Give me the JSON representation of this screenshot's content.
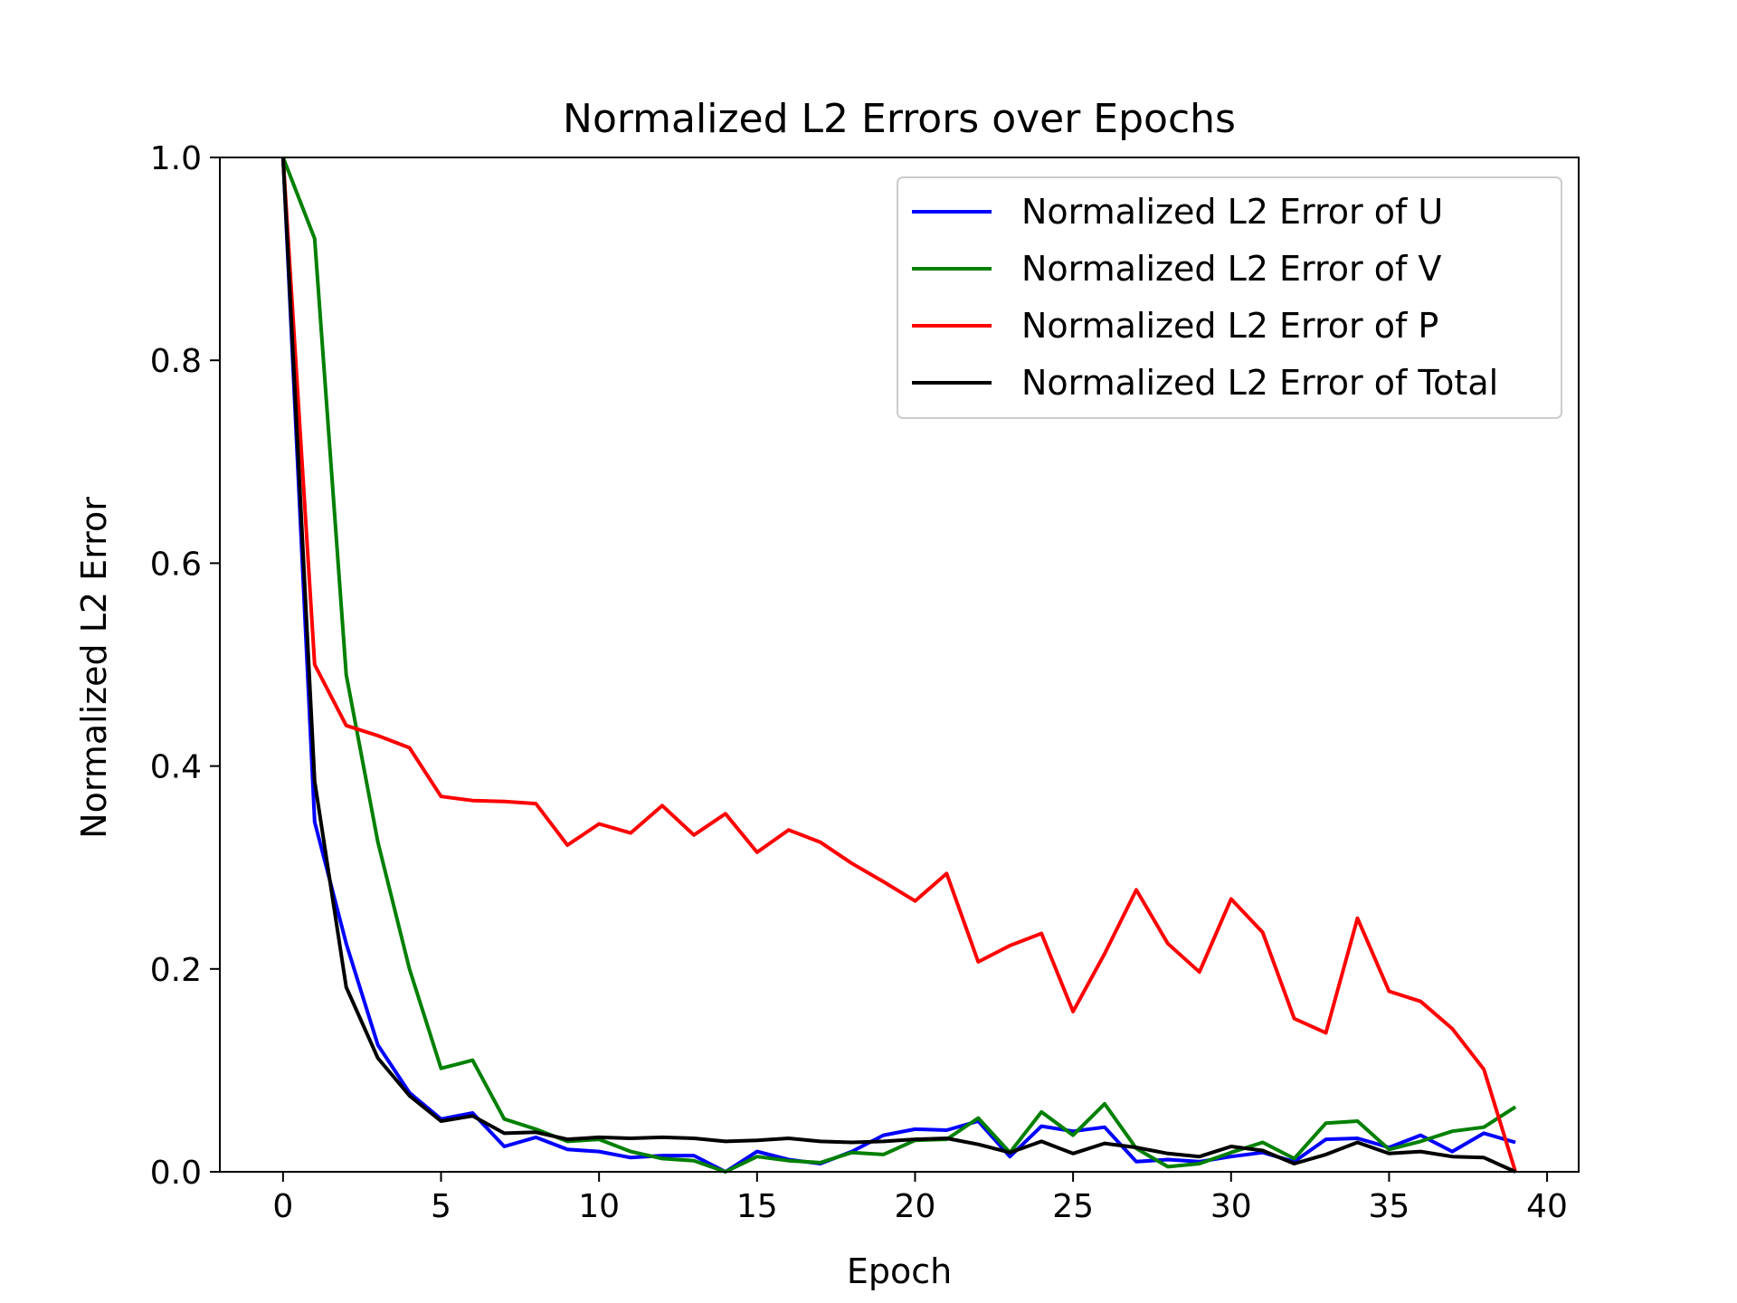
{
  "chart_data": {
    "type": "line",
    "title": "Normalized L2 Errors over Epochs",
    "xlabel": "Epoch",
    "ylabel": "Normalized L2 Error",
    "xlim": [
      -2,
      41
    ],
    "ylim": [
      0,
      1.0
    ],
    "xticks": [
      0,
      5,
      10,
      15,
      20,
      25,
      30,
      35,
      40
    ],
    "yticks": [
      0.0,
      0.2,
      0.4,
      0.6,
      0.8,
      1.0
    ],
    "ytick_labels": [
      "0.0",
      "0.2",
      "0.4",
      "0.6",
      "0.8",
      "1.0"
    ],
    "grid": false,
    "legend": "top-right",
    "x": [
      0,
      1,
      2,
      3,
      4,
      5,
      6,
      7,
      8,
      9,
      10,
      11,
      12,
      13,
      14,
      15,
      16,
      17,
      18,
      19,
      20,
      21,
      22,
      23,
      24,
      25,
      26,
      27,
      28,
      29,
      30,
      31,
      32,
      33,
      34,
      35,
      36,
      37,
      38,
      39
    ],
    "series": [
      {
        "name": "Normalized L2 Error of U",
        "color": "#0000ff",
        "values": [
          1.0,
          0.345,
          0.225,
          0.125,
          0.078,
          0.052,
          0.058,
          0.025,
          0.034,
          0.022,
          0.02,
          0.014,
          0.016,
          0.016,
          0.0,
          0.02,
          0.012,
          0.008,
          0.02,
          0.036,
          0.042,
          0.041,
          0.05,
          0.015,
          0.045,
          0.04,
          0.044,
          0.01,
          0.012,
          0.01,
          0.015,
          0.019,
          0.01,
          0.032,
          0.033,
          0.024,
          0.036,
          0.02,
          0.038,
          0.029
        ]
      },
      {
        "name": "Normalized L2 Error of V",
        "color": "#008000",
        "values": [
          1.0,
          0.92,
          0.49,
          0.325,
          0.2,
          0.102,
          0.11,
          0.052,
          0.042,
          0.03,
          0.032,
          0.02,
          0.013,
          0.011,
          0.0,
          0.015,
          0.011,
          0.009,
          0.019,
          0.017,
          0.031,
          0.032,
          0.053,
          0.019,
          0.059,
          0.036,
          0.067,
          0.023,
          0.005,
          0.008,
          0.019,
          0.029,
          0.013,
          0.048,
          0.05,
          0.022,
          0.03,
          0.04,
          0.044,
          0.064
        ]
      },
      {
        "name": "Normalized L2 Error of P",
        "color": "#ff0000",
        "values": [
          1.0,
          0.5,
          0.44,
          0.43,
          0.418,
          0.37,
          0.366,
          0.365,
          0.363,
          0.322,
          0.343,
          0.334,
          0.361,
          0.332,
          0.353,
          0.315,
          0.337,
          0.325,
          0.304,
          0.286,
          0.267,
          0.294,
          0.207,
          0.223,
          0.235,
          0.158,
          0.215,
          0.278,
          0.225,
          0.197,
          0.269,
          0.236,
          0.151,
          0.137,
          0.25,
          0.178,
          0.168,
          0.141,
          0.101,
          0.0
        ]
      },
      {
        "name": "Normalized L2 Error of Total",
        "color": "#000000",
        "values": [
          1.0,
          0.385,
          0.182,
          0.112,
          0.075,
          0.05,
          0.055,
          0.038,
          0.039,
          0.032,
          0.034,
          0.033,
          0.034,
          0.033,
          0.03,
          0.031,
          0.033,
          0.03,
          0.029,
          0.03,
          0.032,
          0.033,
          0.027,
          0.019,
          0.03,
          0.018,
          0.028,
          0.024,
          0.018,
          0.015,
          0.025,
          0.021,
          0.008,
          0.017,
          0.029,
          0.018,
          0.02,
          0.015,
          0.014,
          0.0
        ]
      }
    ]
  }
}
